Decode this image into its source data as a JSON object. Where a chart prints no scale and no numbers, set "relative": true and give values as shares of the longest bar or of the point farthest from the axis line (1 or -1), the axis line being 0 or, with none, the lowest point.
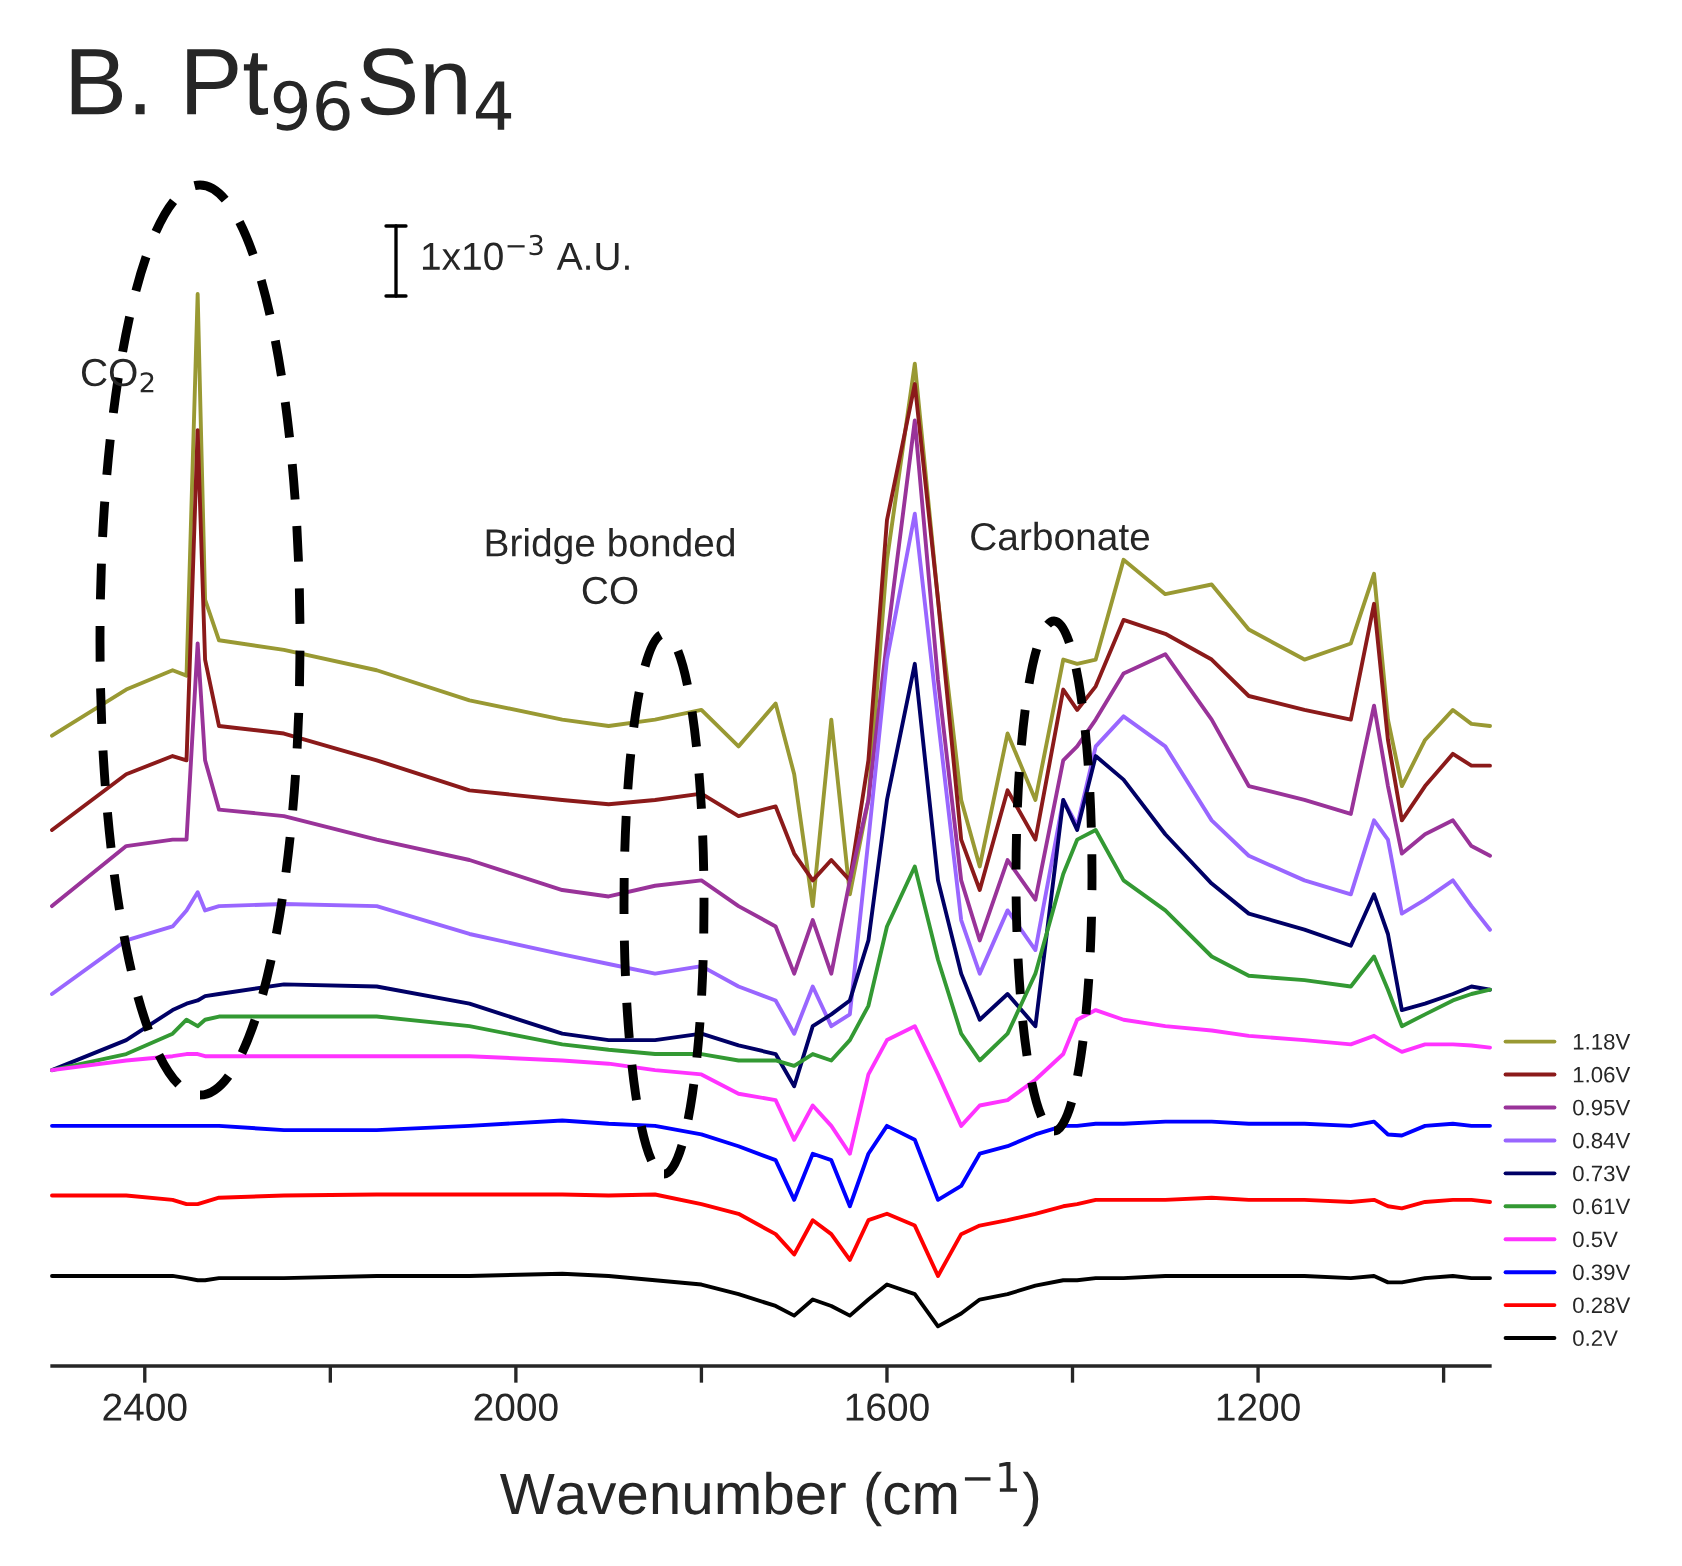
{
  "chart_data": {
    "type": "line",
    "title": "B. Pt$_{96}$Sn$_{4}$",
    "xlabel": "Wavenumber (cm$^{−1}$)",
    "annotations": [
      "1x10$^{−3}$ A.U.",
      "CO$_{2}$",
      "Bridge bonded\nCO",
      "Carbonate"
    ],
    "relative": true,
    "xlim": [
      2500,
      950
    ],
    "xticks": [
      2400,
      {
        "value": 2200,
        "label": null
      },
      2000,
      {
        "value": 1800,
        "label": null
      },
      1600,
      {
        "value": 1400,
        "label": null
      },
      1200,
      {
        "value": 1000,
        "label": null
      }
    ],
    "legend": "right",
    "grid": false,
    "line_style": "solid",
    "x": [
      2500,
      2420,
      2370,
      2355,
      2343,
      2335,
      2320,
      2250,
      2150,
      2050,
      1950,
      1900,
      1850,
      1800,
      1760,
      1720,
      1700,
      1680,
      1660,
      1640,
      1620,
      1600,
      1570,
      1545,
      1520,
      1500,
      1470,
      1440,
      1410,
      1395,
      1375,
      1345,
      1300,
      1250,
      1210,
      1150,
      1100,
      1075,
      1060,
      1045,
      1020,
      990,
      970,
      950
    ],
    "series": [
      {
        "name": "1.18V",
        "color": "#999933",
        "values": [
          0.588,
          0.631,
          0.649,
          0.644,
          1.0,
          0.715,
          0.677,
          0.668,
          0.649,
          0.621,
          0.603,
          0.597,
          0.603,
          0.612,
          0.578,
          0.618,
          0.552,
          0.429,
          0.603,
          0.44,
          0.528,
          0.752,
          0.935,
          0.715,
          0.528,
          0.466,
          0.59,
          0.528,
          0.659,
          0.655,
          0.659,
          0.752,
          0.72,
          0.729,
          0.687,
          0.659,
          0.674,
          0.739,
          0.603,
          0.541,
          0.584,
          0.612,
          0.599,
          0.597
        ]
      },
      {
        "name": "1.06V",
        "color": "#8b1a1a",
        "values": [
          0.5,
          0.552,
          0.569,
          0.565,
          0.873,
          0.659,
          0.597,
          0.59,
          0.565,
          0.537,
          0.528,
          0.524,
          0.528,
          0.534,
          0.513,
          0.522,
          0.478,
          0.453,
          0.472,
          0.453,
          0.565,
          0.789,
          0.916,
          0.715,
          0.491,
          0.444,
          0.537,
          0.491,
          0.631,
          0.612,
          0.634,
          0.696,
          0.683,
          0.659,
          0.625,
          0.612,
          0.603,
          0.711,
          0.584,
          0.509,
          0.541,
          0.571,
          0.56,
          0.56
        ]
      },
      {
        "name": "0.95V",
        "color": "#993399",
        "values": [
          0.429,
          0.485,
          0.491,
          0.491,
          0.674,
          0.565,
          0.519,
          0.513,
          0.491,
          0.472,
          0.444,
          0.438,
          0.448,
          0.453,
          0.429,
          0.41,
          0.366,
          0.416,
          0.366,
          0.453,
          0.528,
          0.677,
          0.882,
          0.64,
          0.453,
          0.397,
          0.472,
          0.435,
          0.565,
          0.578,
          0.603,
          0.646,
          0.664,
          0.603,
          0.541,
          0.528,
          0.515,
          0.616,
          0.541,
          0.478,
          0.496,
          0.509,
          0.485,
          0.476
        ]
      },
      {
        "name": "0.84V",
        "color": "#9966ff",
        "values": [
          0.347,
          0.397,
          0.41,
          0.425,
          0.442,
          0.425,
          0.429,
          0.431,
          0.429,
          0.403,
          0.384,
          0.375,
          0.366,
          0.373,
          0.354,
          0.341,
          0.31,
          0.354,
          0.317,
          0.328,
          0.491,
          0.659,
          0.795,
          0.603,
          0.416,
          0.366,
          0.425,
          0.388,
          0.528,
          0.504,
          0.578,
          0.606,
          0.578,
          0.509,
          0.476,
          0.453,
          0.44,
          0.509,
          0.491,
          0.422,
          0.435,
          0.453,
          0.429,
          0.407
        ]
      },
      {
        "name": "0.73V",
        "color": "#000066",
        "values": [
          0.276,
          0.304,
          0.332,
          0.338,
          0.341,
          0.345,
          0.347,
          0.356,
          0.354,
          0.338,
          0.31,
          0.304,
          0.304,
          0.31,
          0.299,
          0.291,
          0.261,
          0.317,
          0.328,
          0.341,
          0.397,
          0.528,
          0.655,
          0.453,
          0.366,
          0.323,
          0.347,
          0.317,
          0.528,
          0.5,
          0.569,
          0.547,
          0.496,
          0.45,
          0.422,
          0.407,
          0.392,
          0.44,
          0.403,
          0.332,
          0.338,
          0.347,
          0.354,
          0.351
        ]
      },
      {
        "name": "0.61V",
        "color": "#339933",
        "values": [
          0.276,
          0.291,
          0.31,
          0.323,
          0.317,
          0.323,
          0.326,
          0.326,
          0.326,
          0.317,
          0.3,
          0.295,
          0.291,
          0.291,
          0.285,
          0.285,
          0.28,
          0.291,
          0.285,
          0.304,
          0.336,
          0.41,
          0.466,
          0.379,
          0.31,
          0.285,
          0.31,
          0.366,
          0.459,
          0.491,
          0.5,
          0.453,
          0.425,
          0.382,
          0.364,
          0.36,
          0.354,
          0.382,
          0.351,
          0.317,
          0.328,
          0.341,
          0.347,
          0.351
        ]
      },
      {
        "name": "0.5V",
        "color": "#ff33ff",
        "values": [
          0.276,
          0.285,
          0.289,
          0.291,
          0.291,
          0.289,
          0.289,
          0.289,
          0.289,
          0.289,
          0.285,
          0.282,
          0.276,
          0.272,
          0.254,
          0.248,
          0.211,
          0.243,
          0.224,
          0.198,
          0.272,
          0.304,
          0.317,
          0.272,
          0.224,
          0.243,
          0.248,
          0.267,
          0.291,
          0.323,
          0.332,
          0.323,
          0.317,
          0.313,
          0.308,
          0.304,
          0.3,
          0.308,
          0.3,
          0.293,
          0.3,
          0.3,
          0.299,
          0.297
        ]
      },
      {
        "name": "0.39V",
        "color": "#0000ff",
        "values": [
          0.224,
          0.224,
          0.224,
          0.224,
          0.224,
          0.224,
          0.224,
          0.22,
          0.22,
          0.224,
          0.229,
          0.226,
          0.224,
          0.216,
          0.205,
          0.192,
          0.155,
          0.198,
          0.192,
          0.149,
          0.198,
          0.224,
          0.211,
          0.155,
          0.168,
          0.198,
          0.205,
          0.216,
          0.224,
          0.224,
          0.226,
          0.226,
          0.228,
          0.228,
          0.226,
          0.226,
          0.224,
          0.228,
          0.216,
          0.215,
          0.224,
          0.226,
          0.224,
          0.224
        ]
      },
      {
        "name": "0.28V",
        "color": "#ff0000",
        "values": [
          0.159,
          0.159,
          0.155,
          0.151,
          0.151,
          0.153,
          0.157,
          0.159,
          0.16,
          0.16,
          0.16,
          0.159,
          0.16,
          0.151,
          0.142,
          0.123,
          0.104,
          0.136,
          0.123,
          0.099,
          0.136,
          0.142,
          0.131,
          0.084,
          0.123,
          0.131,
          0.136,
          0.142,
          0.149,
          0.151,
          0.155,
          0.155,
          0.155,
          0.157,
          0.155,
          0.155,
          0.153,
          0.155,
          0.149,
          0.147,
          0.153,
          0.155,
          0.155,
          0.153
        ]
      },
      {
        "name": "0.2V",
        "color": "#000000",
        "values": [
          0.084,
          0.084,
          0.084,
          0.082,
          0.08,
          0.08,
          0.082,
          0.082,
          0.084,
          0.084,
          0.086,
          0.084,
          0.08,
          0.076,
          0.067,
          0.056,
          0.047,
          0.062,
          0.056,
          0.047,
          0.062,
          0.076,
          0.067,
          0.037,
          0.049,
          0.062,
          0.067,
          0.075,
          0.08,
          0.08,
          0.082,
          0.082,
          0.084,
          0.084,
          0.084,
          0.084,
          0.082,
          0.084,
          0.078,
          0.078,
          0.082,
          0.084,
          0.082,
          0.082
        ]
      }
    ]
  }
}
